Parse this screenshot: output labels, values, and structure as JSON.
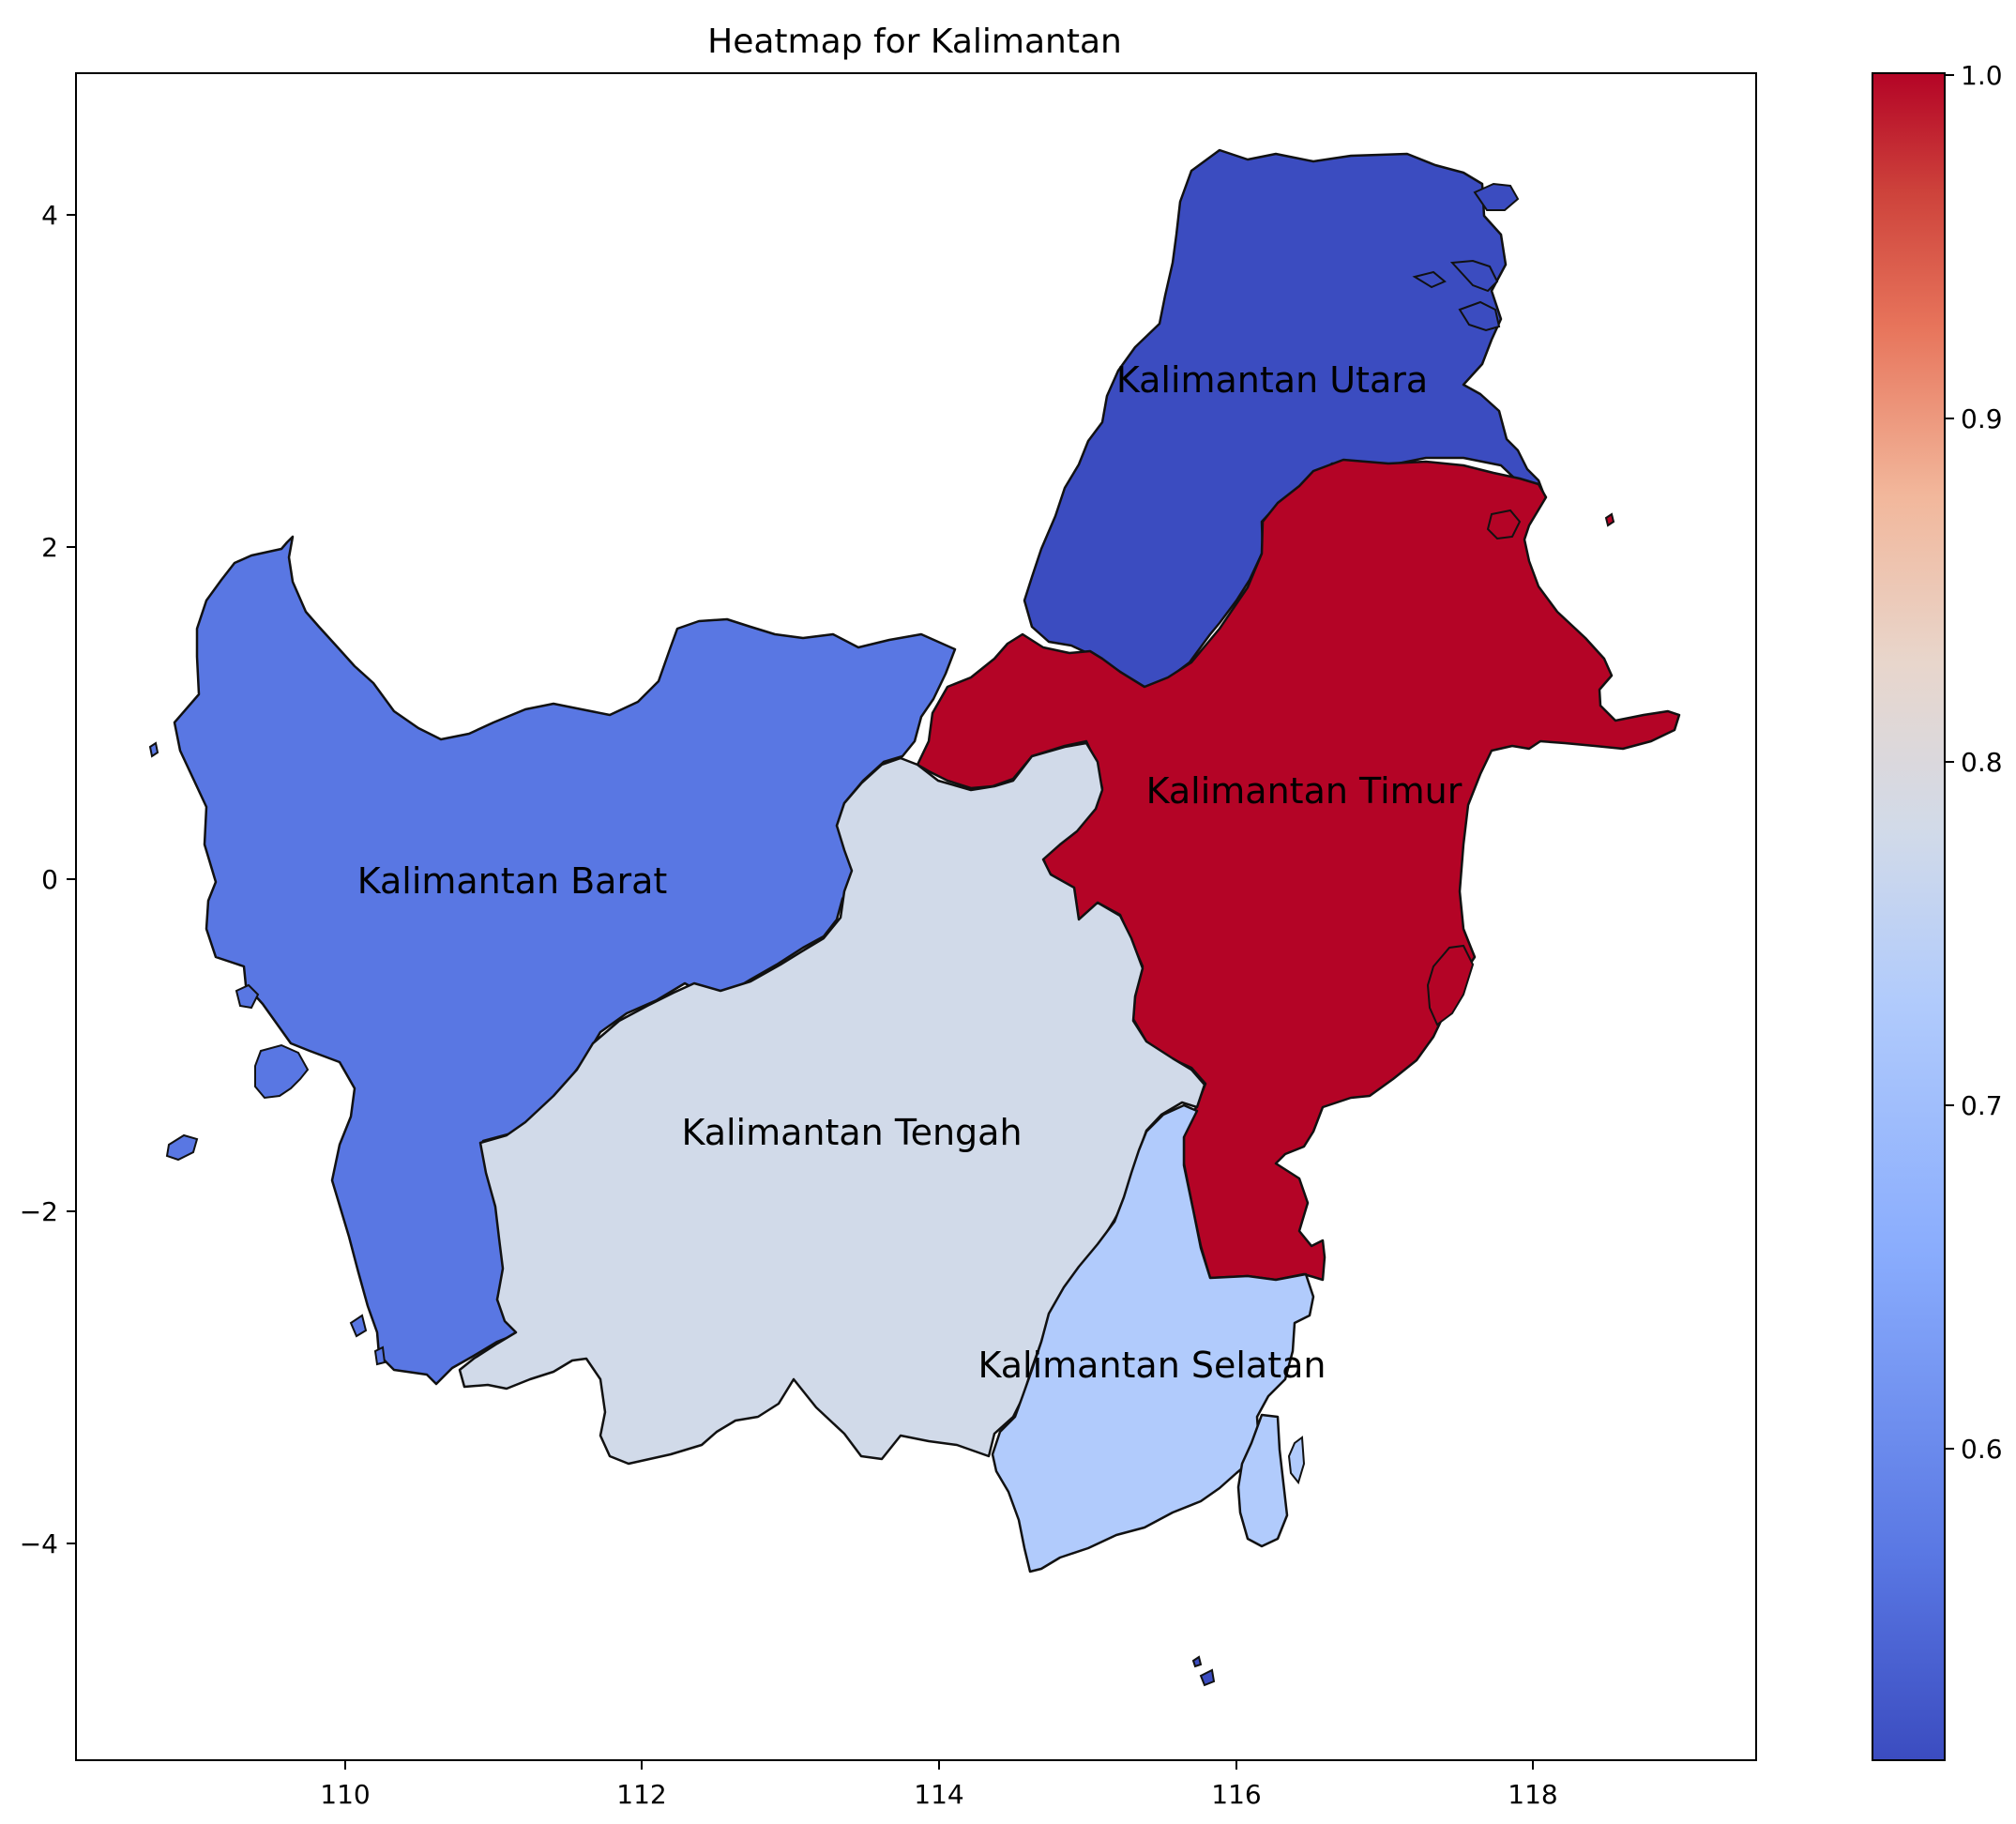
{
  "chart_data": {
    "type": "heatmap",
    "title": "Heatmap for Kalimantan",
    "xlabel": "",
    "ylabel": "",
    "xlim": [
      108.2,
      119.5
    ],
    "ylim": [
      -5.3,
      4.85
    ],
    "x_ticks": [
      "110",
      "112",
      "114",
      "116",
      "118"
    ],
    "y_ticks": [
      "4",
      "2",
      "0",
      "−2",
      "−4"
    ],
    "colormap": "coolwarm",
    "colorbar": {
      "range": [
        0.52,
        1.0
      ],
      "ticks": [
        "1.0",
        "0.9",
        "0.8",
        "0.7",
        "0.6"
      ]
    },
    "regions": [
      {
        "name": "Kalimantan Utara",
        "value": 0.52,
        "color": "#3b4cc0"
      },
      {
        "name": "Kalimantan Barat",
        "value": 0.58,
        "color": "#5977e3"
      },
      {
        "name": "Kalimantan Timur",
        "value": 1.0,
        "color": "#b40426"
      },
      {
        "name": "Kalimantan Tengah",
        "value": 0.75,
        "color": "#d1dae9"
      },
      {
        "name": "Kalimantan Selatan",
        "value": 0.68,
        "color": "#b1cbfc"
      }
    ]
  }
}
